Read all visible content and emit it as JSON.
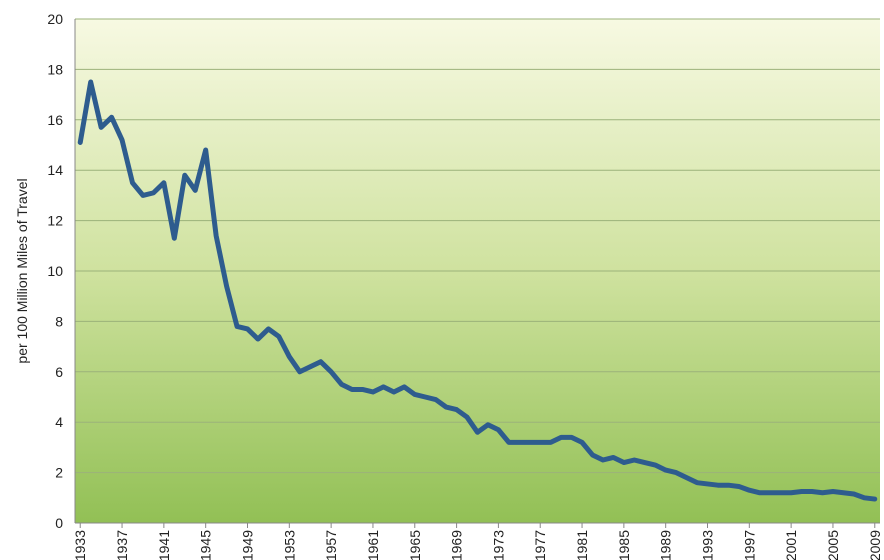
{
  "chart_data": {
    "type": "line",
    "ylabel": "per 100 Million Miles of Travel",
    "x": [
      1933,
      1934,
      1935,
      1936,
      1937,
      1938,
      1939,
      1940,
      1941,
      1942,
      1943,
      1944,
      1945,
      1946,
      1947,
      1948,
      1949,
      1950,
      1951,
      1952,
      1953,
      1954,
      1955,
      1956,
      1957,
      1958,
      1959,
      1960,
      1961,
      1962,
      1963,
      1964,
      1965,
      1966,
      1967,
      1968,
      1969,
      1970,
      1971,
      1972,
      1973,
      1974,
      1975,
      1976,
      1977,
      1978,
      1979,
      1980,
      1981,
      1982,
      1983,
      1984,
      1985,
      1986,
      1987,
      1988,
      1989,
      1990,
      1991,
      1992,
      1993,
      1994,
      1995,
      1996,
      1997,
      1998,
      1999,
      2000,
      2001,
      2002,
      2003,
      2004,
      2005,
      2006,
      2007,
      2008,
      2009
    ],
    "series": [
      {
        "color": "#2e5c8e",
        "values": [
          15.1,
          17.5,
          15.7,
          16.1,
          15.2,
          13.5,
          13.0,
          13.1,
          13.5,
          11.3,
          13.8,
          13.2,
          14.8,
          11.4,
          9.4,
          7.8,
          7.7,
          7.3,
          7.7,
          7.4,
          6.6,
          6.0,
          6.2,
          6.4,
          6.0,
          5.5,
          5.3,
          5.3,
          5.2,
          5.4,
          5.2,
          5.4,
          5.1,
          5.0,
          4.9,
          4.6,
          4.5,
          4.2,
          3.6,
          3.9,
          3.7,
          3.2,
          3.2,
          3.2,
          3.2,
          3.2,
          3.4,
          3.4,
          3.2,
          2.7,
          2.5,
          2.6,
          2.4,
          2.5,
          2.4,
          2.3,
          2.1,
          2.0,
          1.8,
          1.6,
          1.55,
          1.5,
          1.5,
          1.45,
          1.3,
          1.2,
          1.2,
          1.2,
          1.2,
          1.25,
          1.25,
          1.2,
          1.25,
          1.2,
          1.15,
          1.0,
          0.95
        ]
      }
    ],
    "xlim": [
      1932.5,
      2009.5
    ],
    "xticks": [
      1933,
      1937,
      1941,
      1945,
      1949,
      1953,
      1957,
      1961,
      1965,
      1969,
      1973,
      1977,
      1981,
      1985,
      1989,
      1993,
      1997,
      2001,
      2005,
      2009
    ],
    "ylim": [
      0,
      20
    ],
    "yticks": [
      0,
      2,
      4,
      6,
      8,
      10,
      12,
      14,
      16,
      18,
      20
    ],
    "grid": true
  }
}
